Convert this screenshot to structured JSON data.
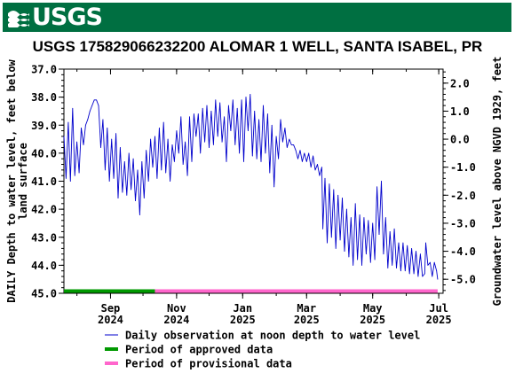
{
  "logo": {
    "text": "USGS",
    "icon": "usgs-wave-icon",
    "color": "#006f41"
  },
  "chart_data": {
    "type": "line",
    "title": "USGS 175829066232200 ALOMAR 1 WELL, SANTA ISABEL, PR",
    "ylabel_left": "DAILY Depth to water level, feet below land surface",
    "ylabel_left_lines": [
      "DAILY Depth to water level, feet below",
      "land surface"
    ],
    "ylabel_right": "Groundwater level above NGVD 1929, feet",
    "y_left_lim": [
      37.0,
      45.0
    ],
    "y_left_inverted": true,
    "y_left_ticks": [
      "37.0",
      "38.0",
      "39.0",
      "40.0",
      "41.0",
      "42.0",
      "43.0",
      "44.0",
      "45.0"
    ],
    "y_right_lim": [
      2.5,
      -5.5
    ],
    "y_right_ticks": [
      "2.0",
      "1.0",
      "0.0",
      "-1.0",
      "-2.0",
      "-3.0",
      "-4.0",
      "-5.0"
    ],
    "x_range": [
      "2024-07-20",
      "2025-07-05"
    ],
    "x_ticks": [
      {
        "date": "2024-09-01",
        "label": [
          "Sep",
          "2024"
        ]
      },
      {
        "date": "2024-11-01",
        "label": [
          "Nov",
          "2024"
        ]
      },
      {
        "date": "2025-01-01",
        "label": [
          "Jan",
          "2025"
        ]
      },
      {
        "date": "2025-03-01",
        "label": [
          "Mar",
          "2025"
        ]
      },
      {
        "date": "2025-05-01",
        "label": [
          "May",
          "2025"
        ]
      },
      {
        "date": "2025-07-01",
        "label": [
          "Jul",
          "2025"
        ]
      }
    ],
    "grid": false,
    "series": [
      {
        "name": "Daily observation at noon depth to water level",
        "color": "#0000cc",
        "points": [
          [
            "2024-07-20",
            39.4
          ],
          [
            "2024-07-22",
            40.9
          ],
          [
            "2024-07-24",
            38.9
          ],
          [
            "2024-07-26",
            41.0
          ],
          [
            "2024-07-28",
            38.4
          ],
          [
            "2024-07-30",
            40.8
          ],
          [
            "2024-08-01",
            39.6
          ],
          [
            "2024-08-03",
            40.7
          ],
          [
            "2024-08-05",
            39.1
          ],
          [
            "2024-08-07",
            39.7
          ],
          [
            "2024-08-09",
            39.0
          ],
          [
            "2024-08-11",
            38.8
          ],
          [
            "2024-08-13",
            38.5
          ],
          [
            "2024-08-15",
            38.3
          ],
          [
            "2024-08-17",
            38.1
          ],
          [
            "2024-08-19",
            38.1
          ],
          [
            "2024-08-21",
            38.3
          ],
          [
            "2024-08-23",
            39.8
          ],
          [
            "2024-08-25",
            38.8
          ],
          [
            "2024-08-27",
            40.6
          ],
          [
            "2024-08-29",
            39.1
          ],
          [
            "2024-08-31",
            41.0
          ],
          [
            "2024-09-02",
            39.5
          ],
          [
            "2024-09-04",
            40.9
          ],
          [
            "2024-09-06",
            39.3
          ],
          [
            "2024-09-08",
            41.6
          ],
          [
            "2024-09-10",
            39.8
          ],
          [
            "2024-09-12",
            41.4
          ],
          [
            "2024-09-14",
            40.3
          ],
          [
            "2024-09-16",
            41.5
          ],
          [
            "2024-09-18",
            40.0
          ],
          [
            "2024-09-20",
            41.3
          ],
          [
            "2024-09-22",
            40.2
          ],
          [
            "2024-09-24",
            41.7
          ],
          [
            "2024-09-26",
            40.6
          ],
          [
            "2024-09-28",
            42.2
          ],
          [
            "2024-09-30",
            40.3
          ],
          [
            "2024-10-02",
            41.6
          ],
          [
            "2024-10-04",
            39.9
          ],
          [
            "2024-10-06",
            41.0
          ],
          [
            "2024-10-08",
            39.5
          ],
          [
            "2024-10-10",
            40.5
          ],
          [
            "2024-10-12",
            39.4
          ],
          [
            "2024-10-14",
            40.9
          ],
          [
            "2024-10-16",
            39.1
          ],
          [
            "2024-10-18",
            40.6
          ],
          [
            "2024-10-20",
            38.9
          ],
          [
            "2024-10-22",
            40.7
          ],
          [
            "2024-10-24",
            39.5
          ],
          [
            "2024-10-26",
            41.0
          ],
          [
            "2024-10-28",
            39.7
          ],
          [
            "2024-10-30",
            40.3
          ],
          [
            "2024-11-01",
            39.2
          ],
          [
            "2024-11-03",
            40.0
          ],
          [
            "2024-11-05",
            38.7
          ],
          [
            "2024-11-07",
            40.4
          ],
          [
            "2024-11-09",
            39.6
          ],
          [
            "2024-11-11",
            40.8
          ],
          [
            "2024-11-13",
            38.7
          ],
          [
            "2024-11-15",
            40.3
          ],
          [
            "2024-11-17",
            38.6
          ],
          [
            "2024-11-19",
            39.4
          ],
          [
            "2024-11-21",
            38.6
          ],
          [
            "2024-11-23",
            40.0
          ],
          [
            "2024-11-25",
            38.4
          ],
          [
            "2024-11-27",
            39.6
          ],
          [
            "2024-11-29",
            38.3
          ],
          [
            "2024-12-01",
            39.8
          ],
          [
            "2024-12-03",
            38.5
          ],
          [
            "2024-12-05",
            39.7
          ],
          [
            "2024-12-07",
            38.1
          ],
          [
            "2024-12-09",
            39.4
          ],
          [
            "2024-12-11",
            38.2
          ],
          [
            "2024-12-13",
            39.6
          ],
          [
            "2024-12-15",
            38.7
          ],
          [
            "2024-12-17",
            40.3
          ],
          [
            "2024-12-19",
            38.3
          ],
          [
            "2024-12-21",
            39.2
          ],
          [
            "2024-12-23",
            38.1
          ],
          [
            "2024-12-25",
            39.7
          ],
          [
            "2024-12-27",
            38.4
          ],
          [
            "2024-12-29",
            40.0
          ],
          [
            "2024-12-31",
            38.1
          ],
          [
            "2025-01-02",
            40.3
          ],
          [
            "2025-01-04",
            38.0
          ],
          [
            "2025-01-06",
            39.2
          ],
          [
            "2025-01-08",
            37.9
          ],
          [
            "2025-01-10",
            40.1
          ],
          [
            "2025-01-12",
            38.5
          ],
          [
            "2025-01-14",
            40.2
          ],
          [
            "2025-01-16",
            38.8
          ],
          [
            "2025-01-18",
            40.3
          ],
          [
            "2025-01-20",
            38.3
          ],
          [
            "2025-01-22",
            40.0
          ],
          [
            "2025-01-24",
            38.6
          ],
          [
            "2025-01-26",
            40.7
          ],
          [
            "2025-01-28",
            39.0
          ],
          [
            "2025-01-30",
            41.2
          ],
          [
            "2025-02-01",
            39.4
          ],
          [
            "2025-02-03",
            40.2
          ],
          [
            "2025-02-05",
            38.8
          ],
          [
            "2025-02-07",
            39.6
          ],
          [
            "2025-02-09",
            39.1
          ],
          [
            "2025-02-11",
            39.8
          ],
          [
            "2025-02-13",
            39.5
          ],
          [
            "2025-02-15",
            39.7
          ],
          [
            "2025-02-17",
            39.7
          ],
          [
            "2025-02-19",
            39.9
          ],
          [
            "2025-02-21",
            40.2
          ],
          [
            "2025-02-23",
            39.9
          ],
          [
            "2025-02-25",
            40.3
          ],
          [
            "2025-02-27",
            40.0
          ],
          [
            "2025-03-01",
            40.3
          ],
          [
            "2025-03-03",
            40.0
          ],
          [
            "2025-03-05",
            40.5
          ],
          [
            "2025-03-07",
            40.1
          ],
          [
            "2025-03-09",
            40.6
          ],
          [
            "2025-03-11",
            40.4
          ],
          [
            "2025-03-13",
            40.8
          ],
          [
            "2025-03-15",
            40.5
          ],
          [
            "2025-03-16",
            42.7
          ],
          [
            "2025-03-18",
            40.9
          ],
          [
            "2025-03-20",
            43.2
          ],
          [
            "2025-03-22",
            41.1
          ],
          [
            "2025-03-24",
            43.0
          ],
          [
            "2025-03-26",
            41.3
          ],
          [
            "2025-03-28",
            43.4
          ],
          [
            "2025-03-30",
            41.5
          ],
          [
            "2025-04-01",
            43.1
          ],
          [
            "2025-04-03",
            41.6
          ],
          [
            "2025-04-05",
            43.5
          ],
          [
            "2025-04-07",
            42.0
          ],
          [
            "2025-04-09",
            43.7
          ],
          [
            "2025-04-11",
            42.3
          ],
          [
            "2025-04-13",
            44.0
          ],
          [
            "2025-04-15",
            41.8
          ],
          [
            "2025-04-17",
            43.8
          ],
          [
            "2025-04-19",
            42.2
          ],
          [
            "2025-04-21",
            44.0
          ],
          [
            "2025-04-23",
            42.3
          ],
          [
            "2025-04-25",
            43.6
          ],
          [
            "2025-04-27",
            42.4
          ],
          [
            "2025-04-29",
            43.9
          ],
          [
            "2025-05-01",
            42.5
          ],
          [
            "2025-05-03",
            43.8
          ],
          [
            "2025-05-05",
            41.2
          ],
          [
            "2025-05-07",
            42.9
          ],
          [
            "2025-05-09",
            41.0
          ],
          [
            "2025-05-11",
            43.6
          ],
          [
            "2025-05-13",
            42.3
          ],
          [
            "2025-05-15",
            44.1
          ],
          [
            "2025-05-17",
            42.8
          ],
          [
            "2025-05-19",
            44.0
          ],
          [
            "2025-05-21",
            42.7
          ],
          [
            "2025-05-23",
            44.1
          ],
          [
            "2025-05-25",
            43.2
          ],
          [
            "2025-05-27",
            44.2
          ],
          [
            "2025-05-29",
            43.2
          ],
          [
            "2025-05-31",
            44.2
          ],
          [
            "2025-06-02",
            43.3
          ],
          [
            "2025-06-04",
            44.3
          ],
          [
            "2025-06-06",
            43.4
          ],
          [
            "2025-06-08",
            44.3
          ],
          [
            "2025-06-10",
            43.5
          ],
          [
            "2025-06-12",
            44.4
          ],
          [
            "2025-06-14",
            43.6
          ],
          [
            "2025-06-16",
            44.4
          ],
          [
            "2025-06-18",
            44.3
          ],
          [
            "2025-06-19",
            43.2
          ],
          [
            "2025-06-21",
            44.0
          ],
          [
            "2025-06-23",
            43.9
          ],
          [
            "2025-06-25",
            44.4
          ],
          [
            "2025-06-27",
            43.9
          ],
          [
            "2025-06-29",
            44.2
          ],
          [
            "2025-06-30",
            44.5
          ]
        ]
      },
      {
        "name": "Period of approved data",
        "color": "#009900",
        "range": [
          "2024-07-20",
          "2024-10-12"
        ]
      },
      {
        "name": "Period of provisional data",
        "color": "#ff66cc",
        "range": [
          "2024-10-12",
          "2025-06-30"
        ]
      }
    ],
    "legend_position": "bottom"
  }
}
